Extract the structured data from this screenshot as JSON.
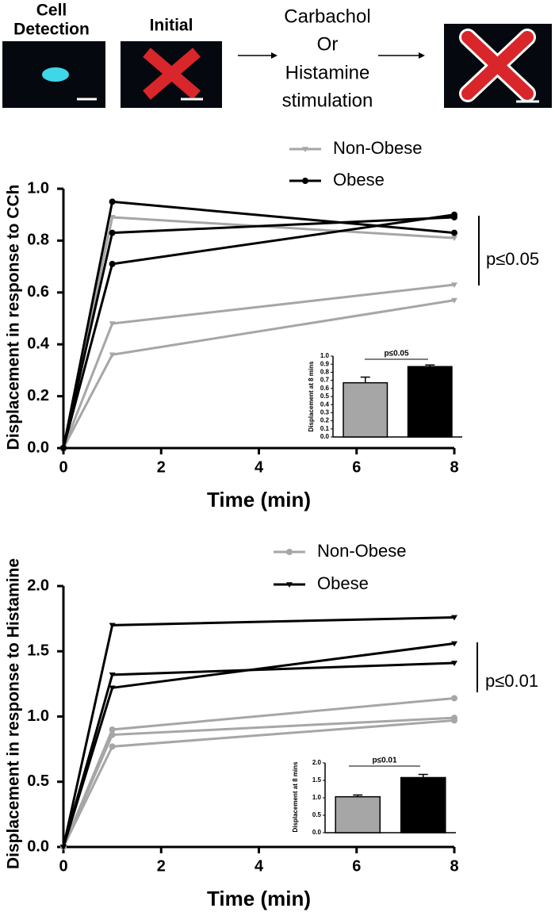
{
  "schematic": {
    "cell_detection": [
      "Cell",
      "Detection"
    ],
    "initial": "Initial",
    "stimulation": [
      "Carbachol",
      "Or",
      "Histamine",
      "stimulation"
    ]
  },
  "chart_data": [
    {
      "type": "line",
      "xlabel": "Time (min)",
      "ylabel": "Displacement in response to CCh",
      "x": [
        0,
        1,
        8
      ],
      "xlim": [
        0,
        8
      ],
      "xticks": [
        0,
        2,
        4,
        6,
        8
      ],
      "ylim": [
        0,
        1.0
      ],
      "yticks": [
        {
          "value": 0,
          "label": "0.0"
        },
        0.2,
        0.4,
        0.6,
        0.8,
        {
          "value": 1,
          "label": "1.0"
        }
      ],
      "legend": "top",
      "series": [
        {
          "name": "Non-Obese",
          "color": "#a6a6a6",
          "marker": "triangle-down",
          "values": [
            [
              0,
              0.89,
              0.81
            ],
            [
              0,
              0.48,
              0.63
            ],
            [
              0,
              0.36,
              0.57
            ]
          ]
        },
        {
          "name": "Obese",
          "color": "#000000",
          "marker": "circle",
          "values": [
            [
              0,
              0.95,
              0.83
            ],
            [
              0,
              0.83,
              0.89
            ],
            [
              0,
              0.71,
              0.9
            ]
          ]
        }
      ],
      "annotation": "p≤0.05"
    },
    {
      "type": "bar",
      "ylabel": "Displacement at 8 mins",
      "categories": [
        null,
        null
      ],
      "values": [
        0.67,
        0.87
      ],
      "errors": [
        0.07,
        0.02
      ],
      "colors": [
        "#a6a6a6",
        "#000000"
      ],
      "ylim": [
        0,
        1.0
      ],
      "yticks": [
        {
          "value": 0,
          "label": "0.0"
        },
        0.1,
        0.2,
        0.3,
        0.4,
        0.5,
        0.6,
        0.7,
        0.8,
        0.9,
        {
          "value": 1,
          "label": "1.0"
        }
      ],
      "annotation": "p≤0.05"
    },
    {
      "type": "line",
      "xlabel": "Time (min)",
      "ylabel": "Displacement in response to Histamine",
      "x": [
        0,
        1,
        8
      ],
      "xlim": [
        0,
        8
      ],
      "xticks": [
        0,
        2,
        4,
        6,
        8
      ],
      "ylim": [
        0,
        2.0
      ],
      "yticks": [
        {
          "value": 0,
          "label": "0.0"
        },
        0.5,
        {
          "value": 1,
          "label": "1.0"
        },
        1.5,
        {
          "value": 2,
          "label": "2.0"
        }
      ],
      "legend": "top",
      "series": [
        {
          "name": "Non-Obese",
          "color": "#a6a6a6",
          "marker": "circle",
          "values": [
            [
              0,
              0.9,
              1.14
            ],
            [
              0,
              0.86,
              0.99
            ],
            [
              0,
              0.77,
              0.97
            ]
          ]
        },
        {
          "name": "Obese",
          "color": "#000000",
          "marker": "triangle-down",
          "values": [
            [
              0,
              1.7,
              1.76
            ],
            [
              0,
              1.32,
              1.41
            ],
            [
              0,
              1.22,
              1.56
            ]
          ]
        }
      ],
      "annotation": "p≤0.01"
    },
    {
      "type": "bar",
      "ylabel": "Displacement at 8 mins",
      "categories": [
        null,
        null
      ],
      "values": [
        1.03,
        1.58
      ],
      "errors": [
        0.05,
        0.09
      ],
      "colors": [
        "#a6a6a6",
        "#000000"
      ],
      "ylim": [
        0,
        2.0
      ],
      "yticks": [
        {
          "value": 0,
          "label": "0.0"
        },
        0.5,
        {
          "value": 1,
          "label": "1.0"
        },
        1.5,
        {
          "value": 2,
          "label": "2.0"
        }
      ],
      "annotation": "p≤0.01"
    }
  ]
}
